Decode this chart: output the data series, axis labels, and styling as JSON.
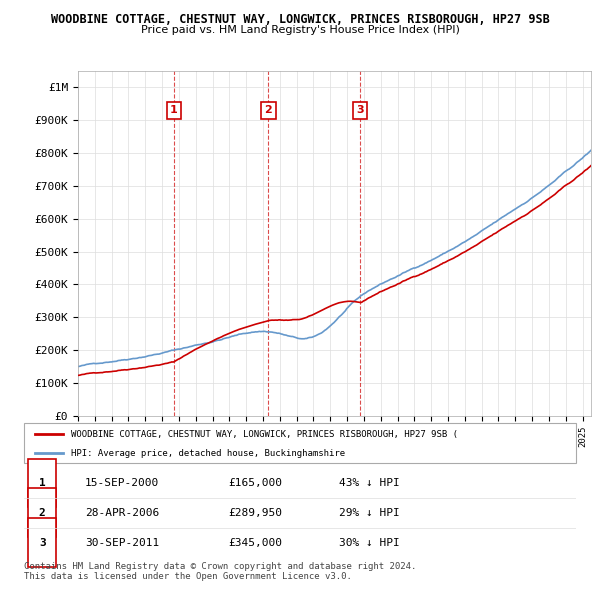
{
  "title": "WOODBINE COTTAGE, CHESTNUT WAY, LONGWICK, PRINCES RISBOROUGH, HP27 9SB",
  "subtitle": "Price paid vs. HM Land Registry's House Price Index (HPI)",
  "ylim": [
    0,
    1050000
  ],
  "yticks": [
    0,
    100000,
    200000,
    300000,
    400000,
    500000,
    600000,
    700000,
    800000,
    900000,
    1000000
  ],
  "ytick_labels": [
    "£0",
    "£100K",
    "£200K",
    "£300K",
    "£400K",
    "£500K",
    "£600K",
    "£700K",
    "£800K",
    "£900K",
    "£1M"
  ],
  "sale_dates": [
    "2000-09-15",
    "2006-04-28",
    "2011-09-30"
  ],
  "sale_prices": [
    165000,
    289950,
    345000
  ],
  "sale_labels": [
    "1",
    "2",
    "3"
  ],
  "property_color": "#cc0000",
  "hpi_color": "#6699cc",
  "legend_property": "WOODBINE COTTAGE, CHESTNUT WAY, LONGWICK, PRINCES RISBOROUGH, HP27 9SB (",
  "legend_hpi": "HPI: Average price, detached house, Buckinghamshire",
  "table_rows": [
    [
      "1",
      "15-SEP-2000",
      "£165,000",
      "43% ↓ HPI"
    ],
    [
      "2",
      "28-APR-2006",
      "£289,950",
      "29% ↓ HPI"
    ],
    [
      "3",
      "30-SEP-2011",
      "£345,000",
      "30% ↓ HPI"
    ]
  ],
  "footnote": "Contains HM Land Registry data © Crown copyright and database right 2024.\nThis data is licensed under the Open Government Licence v3.0.",
  "background_color": "#ffffff",
  "grid_color": "#dddddd"
}
